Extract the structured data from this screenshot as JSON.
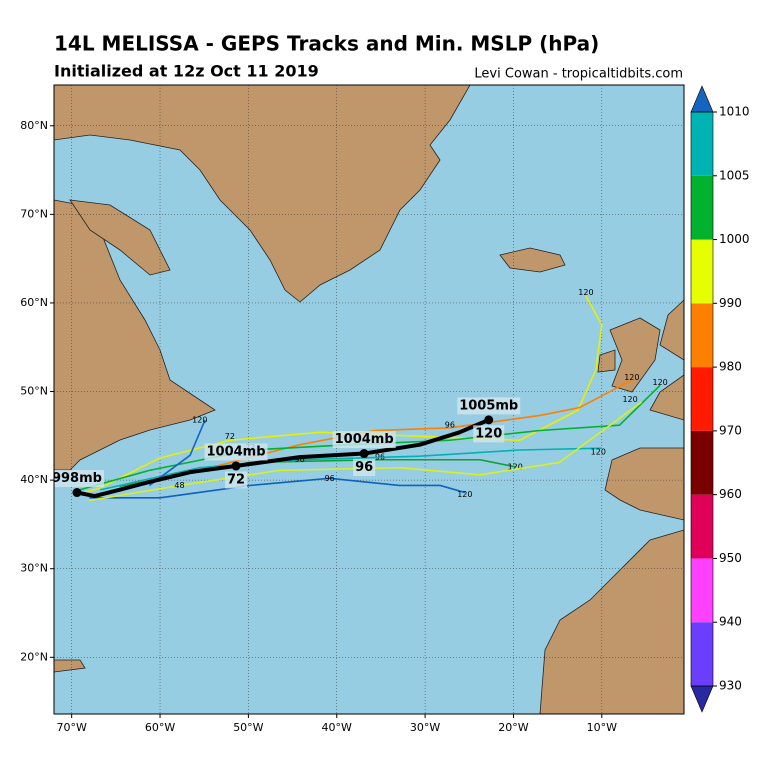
{
  "chart_data": {
    "type": "map",
    "title": "14L MELISSA - GEPS Tracks and Min. MSLP (hPa)",
    "subtitle": "Initialized at 12z Oct 11 2019",
    "credit": "Levi Cowan - tropicaltidbits.com",
    "xlim": [
      -72,
      -0.7
    ],
    "ylim": [
      13.6,
      84.6
    ],
    "xticks": [
      {
        "value": -70,
        "label": "70°W"
      },
      {
        "value": -60,
        "label": "60°W"
      },
      {
        "value": -50,
        "label": "50°W"
      },
      {
        "value": -40,
        "label": "40°W"
      },
      {
        "value": -30,
        "label": "30°W"
      },
      {
        "value": -20,
        "label": "20°W"
      },
      {
        "value": -10,
        "label": "10°W"
      }
    ],
    "yticks": [
      {
        "value": 20,
        "label": "20°N"
      },
      {
        "value": 30,
        "label": "30°N"
      },
      {
        "value": 40,
        "label": "40°N"
      },
      {
        "value": 50,
        "label": "50°N"
      },
      {
        "value": 60,
        "label": "60°N"
      },
      {
        "value": 70,
        "label": "70°N"
      },
      {
        "value": 80,
        "label": "80°N"
      }
    ],
    "grid": true,
    "colorbar": {
      "ticks": [
        930,
        940,
        950,
        960,
        970,
        980,
        990,
        1000,
        1005,
        1010
      ],
      "colors": [
        "#6a3dff",
        "#ff40ff",
        "#e0005a",
        "#7a0000",
        "#ff1a00",
        "#ff7f00",
        "#e6ff00",
        "#00b22d",
        "#00b3b3"
      ],
      "under_color": "#2828a0",
      "over_color": "#1565c0"
    },
    "ensemble": [
      {
        "color": "#e6f000",
        "lon": [
          -69.7,
          -66.8,
          -60.0,
          -52.1,
          -41.9,
          -29.5,
          -19.3,
          -12.7,
          -10.7,
          -10.0,
          -11.8
        ],
        "lat": [
          38.3,
          39.1,
          42.5,
          44.5,
          45.4,
          44.9,
          44.5,
          47.9,
          52.4,
          57.5,
          60.8
        ],
        "labels": [
          {
            "lon": -11.8,
            "lat": 61.2,
            "hour": 120
          },
          {
            "lon": -52.1,
            "lat": 44.9,
            "hour": 72
          }
        ]
      },
      {
        "color": "#ff7f00",
        "lon": [
          -55.5,
          -44.2,
          -35.7,
          -27.2,
          -17.0,
          -12.5,
          -6.6
        ],
        "lat": [
          41.1,
          44.0,
          45.6,
          45.9,
          47.3,
          48.2,
          51.3
        ],
        "labels": [
          {
            "lon": -6.6,
            "lat": 51.6,
            "hour": 120
          },
          {
            "lon": -27.2,
            "lat": 46.2,
            "hour": 96
          }
        ]
      },
      {
        "color": "#00b22d",
        "lon": [
          -69.1,
          -61.2,
          -49.8,
          -38.5,
          -27.2,
          -17.0,
          -8.0,
          -3.4
        ],
        "lat": [
          38.9,
          41.1,
          43.4,
          44.0,
          44.5,
          45.6,
          46.2,
          50.7
        ],
        "labels": [
          {
            "lon": -3.4,
            "lat": 51.0,
            "hour": 120
          },
          {
            "lon": -49.8,
            "lat": 43.7,
            "hour": 72
          }
        ]
      },
      {
        "color": "#10a030",
        "lon": [
          -64.6,
          -49.8,
          -35.1,
          -23.8,
          -19.8
        ],
        "lat": [
          39.3,
          42.0,
          42.3,
          42.3,
          41.5
        ],
        "labels": [
          {
            "lon": -19.8,
            "lat": 41.5,
            "hour": 120
          },
          {
            "lon": -35.1,
            "lat": 42.6,
            "hour": 96
          }
        ]
      },
      {
        "color": "#1060c0",
        "lon": [
          -68.0,
          -60.0,
          -49.8,
          -40.8,
          -32.9,
          -28.3,
          -25.5
        ],
        "lat": [
          38.0,
          38.0,
          39.4,
          40.2,
          39.4,
          39.4,
          38.6
        ],
        "labels": [
          {
            "lon": -25.5,
            "lat": 38.4,
            "hour": 120
          },
          {
            "lon": -40.8,
            "lat": 40.2,
            "hour": 96
          }
        ]
      },
      {
        "color": "#00b3b3",
        "lon": [
          -66.8,
          -55.5,
          -44.2,
          -30.6,
          -19.3,
          -10.0
        ],
        "lat": [
          38.9,
          41.4,
          42.3,
          42.7,
          43.4,
          43.6
        ],
        "labels": [
          {
            "lon": -10.4,
            "lat": 43.2,
            "hour": 120
          },
          {
            "lon": -44.2,
            "lat": 42.3,
            "hour": 96
          }
        ]
      },
      {
        "color": "#1565c0",
        "lon": [
          -61.2,
          -56.6,
          -54.9
        ],
        "lat": [
          39.4,
          42.8,
          46.8
        ],
        "labels": [
          {
            "lon": -55.5,
            "lat": 46.8,
            "hour": 120
          }
        ]
      },
      {
        "color": "#d8f020",
        "lon": [
          -68.0,
          -57.8,
          -46.5,
          -32.9,
          -23.8,
          -14.8,
          -5.5
        ],
        "lat": [
          37.7,
          39.4,
          41.1,
          41.4,
          40.6,
          42.0,
          48.8
        ],
        "labels": [
          {
            "lon": -6.8,
            "lat": 49.1,
            "hour": 120
          },
          {
            "lon": -57.8,
            "lat": 39.4,
            "hour": 48
          }
        ]
      }
    ],
    "mean_track": {
      "color": "#000000",
      "lon": [
        -69.4,
        -67.4,
        -64.6,
        -61.2,
        -56.6,
        -51.4,
        -44.2,
        -36.9,
        -30.6,
        -26.1,
        -22.8
      ],
      "lat": [
        38.6,
        38.2,
        38.9,
        39.8,
        40.9,
        41.6,
        42.6,
        43.0,
        44.0,
        45.4,
        46.8
      ],
      "points": [
        {
          "lon": -69.4,
          "lat": 38.6,
          "pressure": {
            "value": 998,
            "label": "998mb"
          }
        },
        {
          "lon": -51.4,
          "lat": 41.6,
          "pressure": {
            "value": 1004,
            "label": "1004mb"
          },
          "hour": 72
        },
        {
          "lon": -36.9,
          "lat": 43.0,
          "pressure": {
            "value": 1004,
            "label": "1004mb"
          },
          "hour": 96
        },
        {
          "lon": -22.8,
          "lat": 46.8,
          "pressure": {
            "value": 1005,
            "label": "1005mb"
          },
          "hour": 120
        }
      ]
    }
  }
}
